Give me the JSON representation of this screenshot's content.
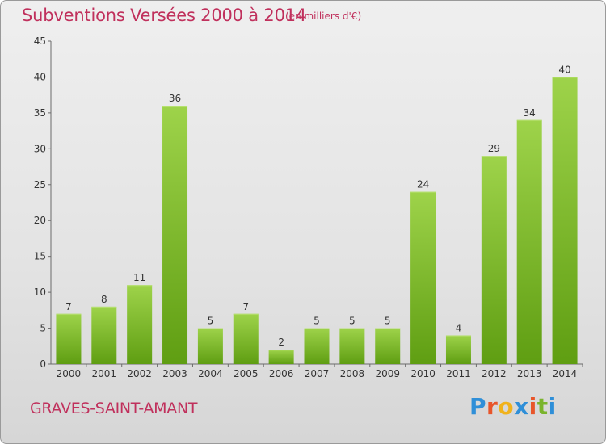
{
  "title": "Subventions Versées 2000 à 2014",
  "subtitle": "(en milliers d'€)",
  "commune": "GRAVES-SAINT-AMANT",
  "logo": {
    "letters": [
      "P",
      "r",
      "o",
      "x",
      "i",
      "t",
      "i"
    ],
    "colors": [
      "#2f8fd8",
      "#e8552a",
      "#f0b21c",
      "#2f8fd8",
      "#e8552a",
      "#7ab42c",
      "#2f8fd8"
    ]
  },
  "colors": {
    "title": "#c0305c",
    "bar_light": "#9ed34a",
    "bar_dark": "#5f9e12"
  },
  "chart_data": {
    "type": "bar",
    "categories": [
      "2000",
      "2001",
      "2002",
      "2003",
      "2004",
      "2005",
      "2006",
      "2007",
      "2008",
      "2009",
      "2010",
      "2011",
      "2012",
      "2013",
      "2014"
    ],
    "values": [
      7,
      8,
      11,
      36,
      5,
      7,
      2,
      5,
      5,
      5,
      24,
      4,
      29,
      34,
      40
    ],
    "ylim": [
      0,
      45
    ],
    "yticks": [
      0,
      5,
      10,
      15,
      20,
      25,
      30,
      35,
      40,
      45
    ],
    "grid": false,
    "legend": "none"
  }
}
